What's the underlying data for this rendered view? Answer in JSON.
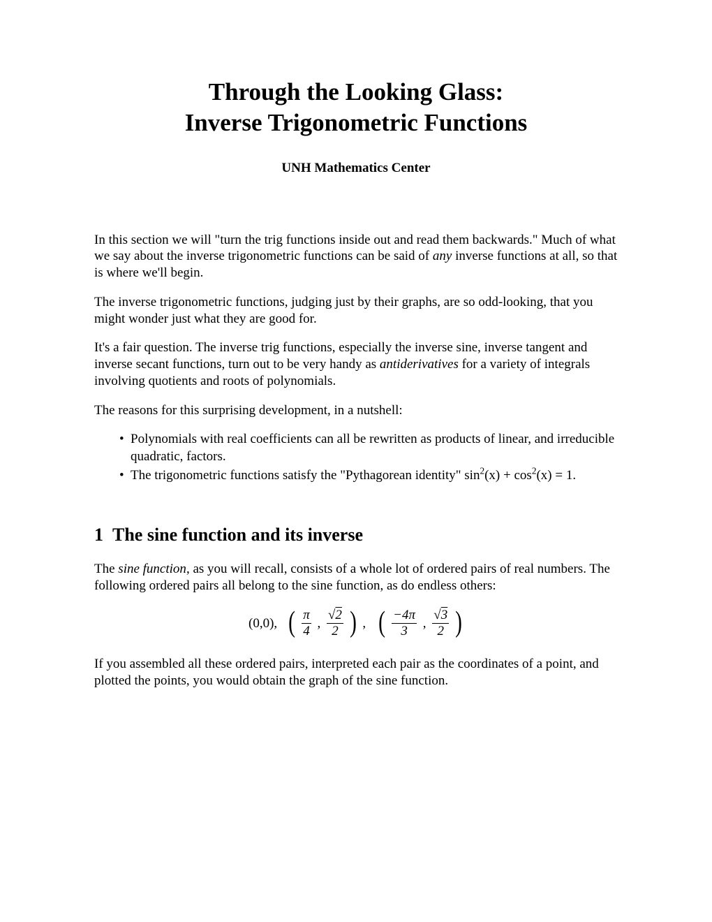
{
  "title": {
    "line1": "Through the Looking Glass:",
    "line2": "Inverse Trigonometric Functions"
  },
  "subtitle": "UNH Mathematics Center",
  "paragraphs": {
    "intro1_a": "In this section we will \"turn the trig functions inside out and read them backwards.\" Much of what we say about the inverse trigonometric functions can be said of ",
    "intro1_em": "any",
    "intro1_b": " inverse functions at all, so that is where we'll begin.",
    "intro2": "The inverse trigonometric functions, judging just by their graphs, are so odd-looking, that you might wonder just what they are good for.",
    "intro3_a": "It's a fair question. The inverse trig functions, especially the inverse sine, inverse tangent and inverse secant functions, turn out to be very handy as ",
    "intro3_em": "antiderivatives",
    "intro3_b": " for a variety of integrals involving quotients and roots of polynomials.",
    "intro4": "The reasons for this surprising development, in a nutshell:"
  },
  "bullets": {
    "b1": "Polynomials with real coefficients can all be rewritten as products of linear, and irreducible quadratic, factors.",
    "b2_a": "The trigonometric functions satisfy the \"Pythagorean identity\" sin",
    "b2_sup1": "2",
    "b2_mid": "(x) + cos",
    "b2_sup2": "2",
    "b2_b": "(x) = 1."
  },
  "section1": {
    "number": "1",
    "title": "The sine function and its inverse",
    "p1_a": "The ",
    "p1_em": "sine function",
    "p1_b": ", as you will recall, consists of a whole lot of ordered pairs of real numbers. The following ordered pairs all belong to the sine function, as do endless others:",
    "p2": "If you assembled all these ordered pairs, interpreted each pair as the coordinates of a point, and plotted the points, you would obtain the graph of the sine function."
  },
  "math": {
    "pair1": "(0,0),",
    "frac1_num": "π",
    "frac1_den": "4",
    "frac2_num_rad": "2",
    "frac2_den": "2",
    "frac3_num_a": "−4",
    "frac3_num_b": "π",
    "frac3_den": "3",
    "frac4_num_rad": "3",
    "frac4_den": "2"
  },
  "colors": {
    "text": "#000000",
    "background": "#ffffff"
  },
  "typography": {
    "body_fontsize": 19,
    "title_fontsize": 35,
    "subtitle_fontsize": 19,
    "section_fontsize": 26,
    "font_family": "Times New Roman"
  }
}
